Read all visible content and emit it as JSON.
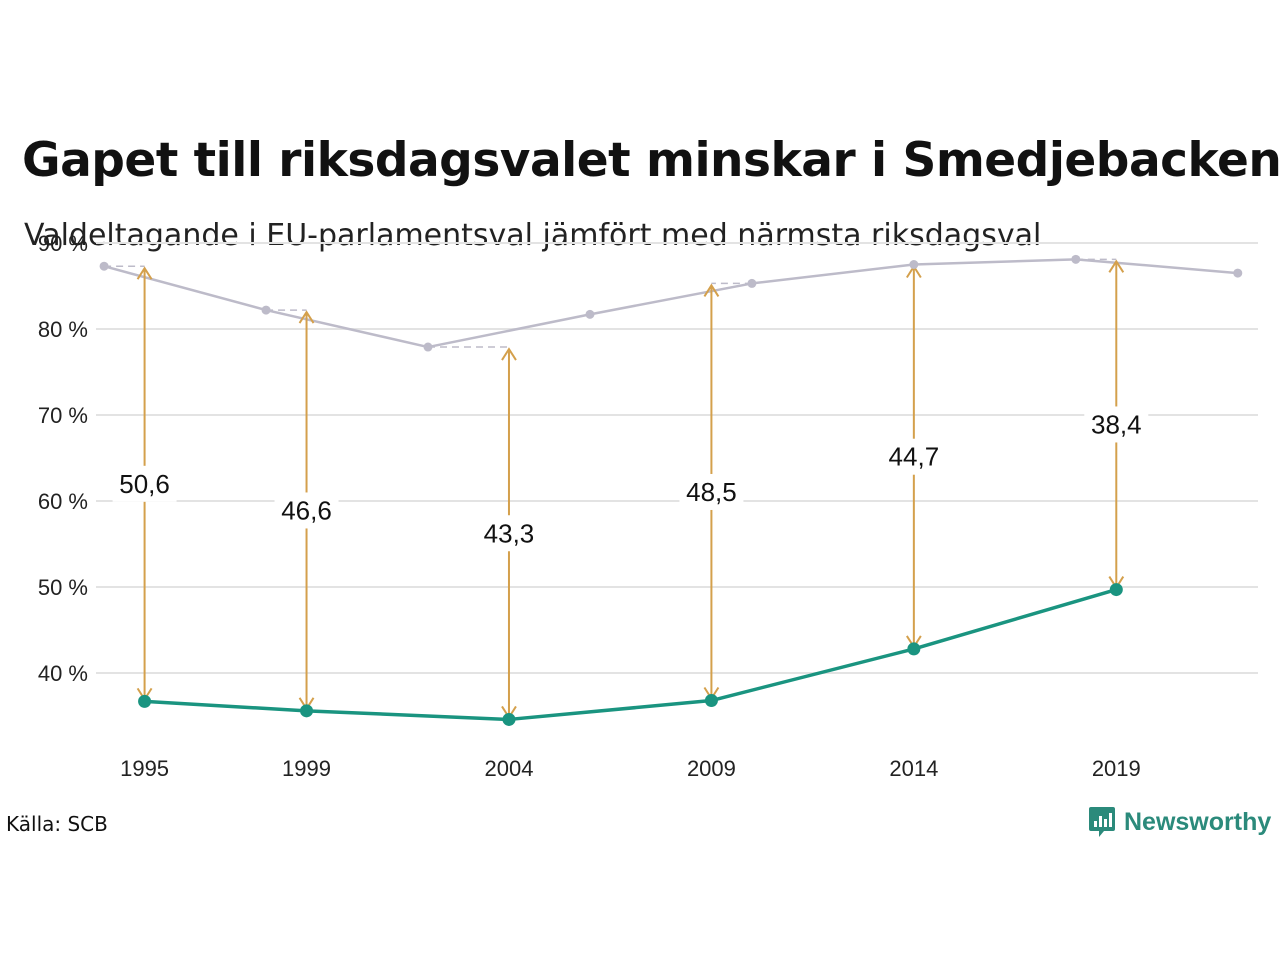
{
  "title": "Gapet till riksdagsvalet minskar i Smedjebacken",
  "subtitle": "Valdeltagande i EU-parlamentsval jämfört med närmsta riksdagsval",
  "source": "Källa: SCB",
  "brand": "Newsworthy",
  "colors": {
    "riksdag": "#bdbbc9",
    "eu": "#1a9480",
    "arrow": "#d4a04c",
    "grid": "#e3e3e3",
    "brand": "#2b8a7b"
  },
  "chart_data": {
    "type": "line",
    "ylim": [
      30,
      90
    ],
    "yticks": [
      40,
      50,
      60,
      70,
      80,
      90
    ],
    "ytick_labels": [
      "40 %",
      "50 %",
      "60 %",
      "70 %",
      "80 %",
      "90 %"
    ],
    "xlim": [
      1993.8,
      2022.5
    ],
    "xticks": [
      1995,
      1999,
      2004,
      2009,
      2014,
      2019
    ],
    "xtick_labels": [
      "1995",
      "1999",
      "2004",
      "2009",
      "2014",
      "2019"
    ],
    "series": [
      {
        "key": "riksdag",
        "x": [
          1994,
          1998,
          2002,
          2006,
          2010,
          2014,
          2018,
          2022
        ],
        "values": [
          87.3,
          82.2,
          77.9,
          81.7,
          85.3,
          87.5,
          88.1,
          86.5
        ]
      },
      {
        "key": "eu",
        "x": [
          1995,
          1999,
          2004,
          2009,
          2014,
          2019
        ],
        "values": [
          36.7,
          35.6,
          34.6,
          36.8,
          42.8,
          49.7
        ]
      }
    ],
    "gaps": [
      {
        "x": 1995,
        "from": 87.3,
        "to": 36.7,
        "label": "50,6",
        "ref_x": 1994
      },
      {
        "x": 1999,
        "from": 82.2,
        "to": 35.6,
        "label": "46,6",
        "ref_x": 1998
      },
      {
        "x": 2004,
        "from": 77.9,
        "to": 34.6,
        "label": "43,3",
        "ref_x": 2002
      },
      {
        "x": 2009,
        "from": 85.3,
        "to": 36.8,
        "label": "48,5",
        "ref_x": 2010
      },
      {
        "x": 2014,
        "from": 87.5,
        "to": 42.8,
        "label": "44,7",
        "ref_x": 2014
      },
      {
        "x": 2019,
        "from": 88.1,
        "to": 49.7,
        "label": "38,4",
        "ref_x": 2018
      }
    ]
  }
}
